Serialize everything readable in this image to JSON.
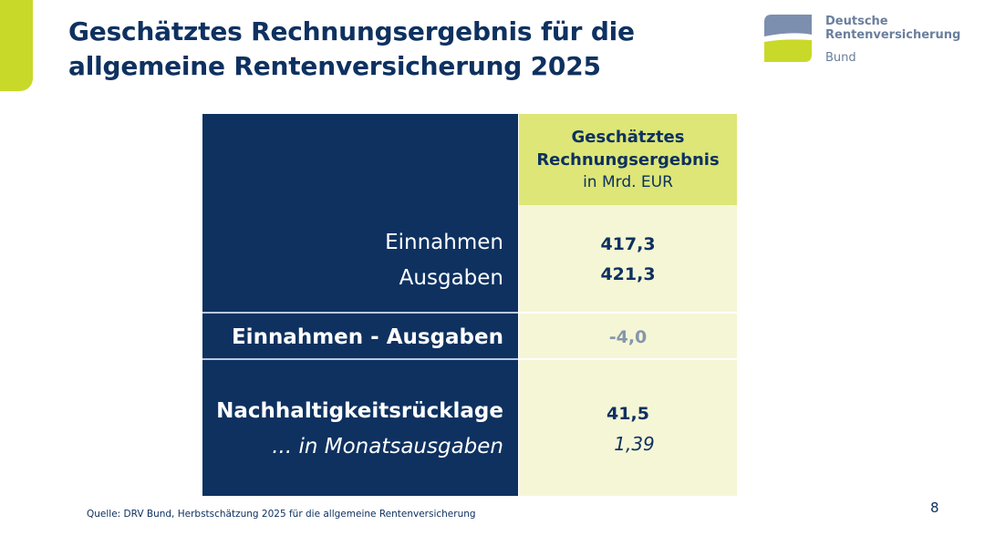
{
  "title_line1": "Geschätztes Rechnungsergebnis für die",
  "title_line2": "allgemeine Rentenversicherung 2025",
  "logo": {
    "line1": "Deutsche",
    "line2": "Rentenversicherung",
    "line3": "Bund",
    "colors": {
      "top": "#7c8fae",
      "bottom": "#c9d92a"
    }
  },
  "table": {
    "header": {
      "line1": "Geschätztes",
      "line2": "Rechnungsergebnis",
      "unit": "in Mrd. EUR"
    },
    "rows": [
      {
        "label": "Einnahmen",
        "value": "417,3"
      },
      {
        "label": "Ausgaben",
        "value": "421,3"
      },
      {
        "label": "Einnahmen - Ausgaben",
        "value": "-4,0"
      },
      {
        "label": "Nachhaltigkeitsrücklage",
        "value": "41,5"
      },
      {
        "label": "... in Monatsausgaben",
        "value": "1,39"
      }
    ]
  },
  "colors": {
    "navy": "#0e3160",
    "accent": "#c9d92a",
    "header_cell": "#dde676",
    "body_cell": "#f5f6d6"
  },
  "source": "Quelle: DRV Bund, Herbstschätzung 2025 für die allgemeine Rentenversicherung",
  "page_number": "8"
}
